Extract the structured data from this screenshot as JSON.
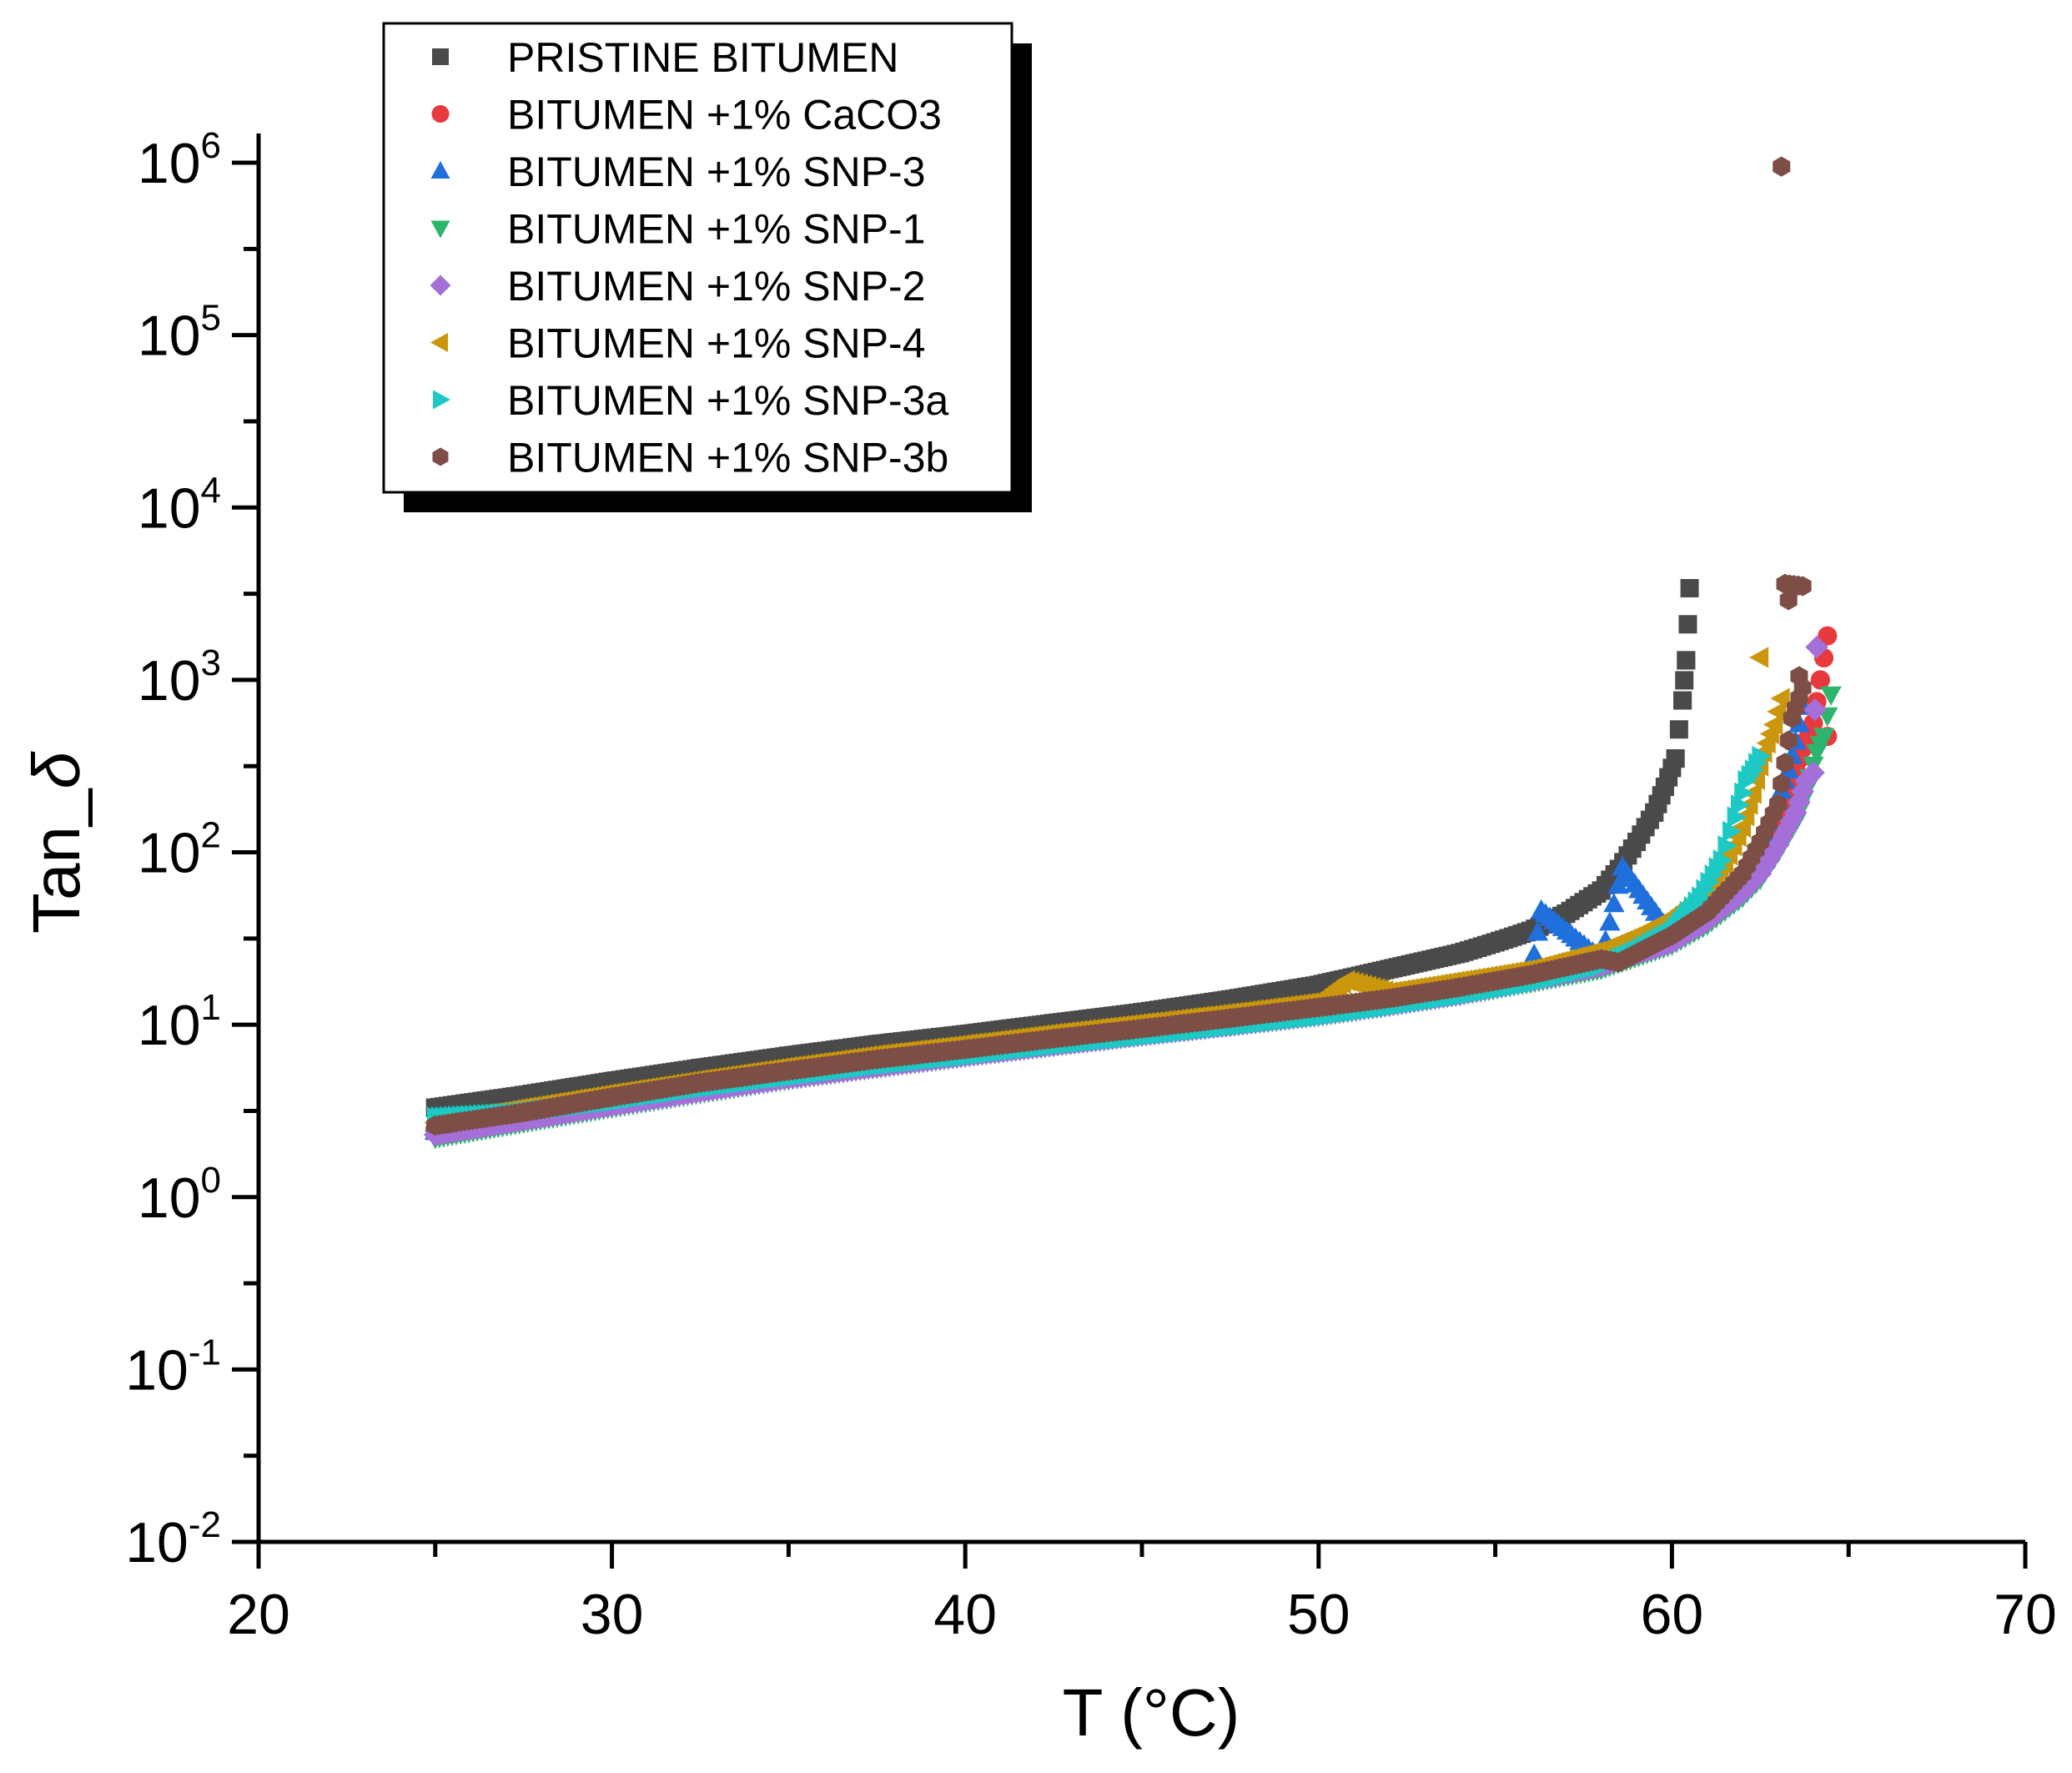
{
  "chart_data": {
    "type": "scatter",
    "title": "",
    "xlabel": "T (°C)",
    "ylabel": "Tan_δ",
    "ylabel_parts": {
      "base": "Tan_",
      "symbol": "δ"
    },
    "xlim": [
      20,
      70
    ],
    "ylim_log10": [
      -2,
      6
    ],
    "yscale": "log",
    "xticks": [
      "20",
      "30",
      "40",
      "50",
      "60",
      "70"
    ],
    "yticks": [
      {
        "base": "10",
        "exp": "-2"
      },
      {
        "base": "10",
        "exp": "-1"
      },
      {
        "base": "10",
        "exp": "0"
      },
      {
        "base": "10",
        "exp": "1"
      },
      {
        "base": "10",
        "exp": "2"
      },
      {
        "base": "10",
        "exp": "3"
      },
      {
        "base": "10",
        "exp": "4"
      },
      {
        "base": "10",
        "exp": "5"
      },
      {
        "base": "10",
        "exp": "6"
      }
    ],
    "legend_position": "top-left",
    "series": [
      {
        "name": "PRISTINE BITUMEN",
        "marker": "square",
        "color": "#4a4a4a",
        "x": [
          25,
          27.5,
          30,
          32.5,
          35,
          37.5,
          40,
          42.5,
          45,
          47.5,
          50,
          52,
          54,
          55,
          56,
          57,
          58,
          58.5,
          59,
          59.5,
          59.8,
          60.1,
          60.3,
          60.4,
          60.5
        ],
        "y": [
          3.3,
          3.9,
          4.7,
          5.6,
          6.6,
          7.7,
          8.8,
          10.2,
          11.8,
          14.0,
          17.0,
          21,
          26,
          30,
          35,
          44,
          60,
          80,
          115,
          170,
          240,
          350,
          760,
          1300,
          3400
        ]
      },
      {
        "name": "BITUMEN +1% CaCO3",
        "marker": "circle",
        "color": "#e8393f",
        "x": [
          25,
          27.5,
          30,
          32.5,
          35,
          37.5,
          40,
          42.5,
          45,
          47.5,
          50,
          52,
          54,
          56,
          58,
          60,
          61,
          62,
          62.5,
          63,
          63.5,
          63.7,
          64.0,
          64.2,
          64.4,
          64.4
        ],
        "y": [
          2.5,
          3.0,
          3.7,
          4.4,
          5.2,
          6.0,
          6.9,
          7.9,
          9.0,
          10.3,
          12.0,
          13.5,
          16,
          19,
          23,
          33,
          45,
          72,
          100,
          160,
          300,
          400,
          560,
          1000,
          1800,
          470
        ]
      },
      {
        "name": "BITUMEN +1% SNP-3",
        "marker": "triangle-up",
        "color": "#1f6fdc",
        "x": [
          25,
          27.5,
          30,
          32.5,
          35,
          37.5,
          40,
          42.5,
          45,
          47.5,
          50,
          52,
          54,
          56,
          56.3,
          58,
          58.6,
          60,
          61,
          62,
          62.5,
          63,
          63.3,
          63.5,
          63.7
        ],
        "y": [
          2.4,
          2.9,
          3.6,
          4.3,
          5.1,
          6.0,
          6.9,
          7.9,
          9.0,
          10.3,
          12.0,
          13.5,
          16,
          19,
          46,
          24,
          82,
          33,
          45,
          75,
          110,
          200,
          300,
          440,
          700
        ]
      },
      {
        "name": "BITUMEN +1% SNP-1",
        "marker": "triangle-down",
        "color": "#2db56e",
        "x": [
          25,
          27.5,
          30,
          32.5,
          35,
          37.5,
          40,
          42.5,
          45,
          47.5,
          50,
          52,
          54,
          56,
          58,
          60,
          61,
          62,
          62.5,
          63,
          63.5,
          63.8,
          64.1,
          64.3,
          64.5
        ],
        "y": [
          2.2,
          2.7,
          3.3,
          4.0,
          4.8,
          5.6,
          6.5,
          7.5,
          8.6,
          9.8,
          11.2,
          12.8,
          14.8,
          17.5,
          21,
          29,
          38,
          55,
          70,
          100,
          150,
          230,
          380,
          470,
          820
        ]
      },
      {
        "name": "BITUMEN +1% SNP-2",
        "marker": "diamond",
        "color": "#a46fd8",
        "x": [
          25,
          27.5,
          30,
          32.5,
          35,
          37.5,
          40,
          42.5,
          45,
          47.5,
          50,
          52,
          54,
          56,
          58,
          60,
          61,
          62,
          62.5,
          63,
          63.5,
          63.8,
          64.0,
          64.1
        ],
        "y": [
          2.3,
          2.8,
          3.4,
          4.1,
          4.9,
          5.7,
          6.6,
          7.6,
          8.7,
          9.9,
          11.4,
          13.0,
          15,
          18,
          22,
          30,
          40,
          58,
          75,
          110,
          170,
          260,
          290,
          1550
        ]
      },
      {
        "name": "BITUMEN +1% SNP-4",
        "marker": "triangle-left",
        "color": "#c9960c",
        "x": [
          25,
          27.5,
          30,
          32.5,
          35,
          37.5,
          40,
          42.5,
          45,
          47.5,
          50,
          50.8,
          52,
          54,
          56,
          58,
          59,
          60,
          61,
          61.5,
          62,
          62.3,
          62.6,
          62.9,
          63.1,
          62.5
        ],
        "y": [
          2.7,
          3.3,
          4.0,
          4.8,
          5.7,
          6.7,
          7.7,
          8.9,
          10.2,
          11.7,
          13.6,
          18,
          15.5,
          18,
          21,
          27,
          33,
          42,
          60,
          85,
          140,
          220,
          380,
          550,
          780,
          1350
        ]
      },
      {
        "name": "BITUMEN +1% SNP-3a",
        "marker": "triangle-right",
        "color": "#1cc9c4",
        "x": [
          25,
          27.5,
          30,
          32.5,
          35,
          37.5,
          40,
          42.5,
          45,
          47.5,
          50,
          52,
          54,
          56,
          58,
          59,
          60,
          60.8,
          61.4,
          61.8,
          62.1,
          62.3,
          62.5
        ],
        "y": [
          2.9,
          3.1,
          3.6,
          4.3,
          5.0,
          5.8,
          6.6,
          7.6,
          8.6,
          9.8,
          11.2,
          12.8,
          14.8,
          17.5,
          22,
          27,
          35,
          55,
          90,
          160,
          260,
          300,
          360
        ]
      },
      {
        "name": "BITUMEN +1% SNP-3b",
        "marker": "hexagon",
        "color": "#7d4e46",
        "x": [
          25,
          27.5,
          30,
          32.5,
          35,
          37.5,
          40,
          42.5,
          45,
          47.5,
          50,
          52,
          54,
          56,
          58,
          58.5,
          60,
          61,
          62,
          62.5,
          63,
          63.2,
          63.4,
          63.7,
          63.6,
          63.3,
          63.2,
          63.7,
          63.1
        ],
        "y": [
          2.6,
          3.1,
          3.8,
          4.6,
          5.4,
          6.3,
          7.2,
          8.3,
          9.5,
          10.9,
          12.6,
          14.2,
          16.5,
          19.5,
          24,
          23,
          33,
          45,
          75,
          115,
          190,
          330,
          600,
          900,
          1050,
          2900,
          3600,
          3500,
          950000
        ]
      }
    ]
  }
}
